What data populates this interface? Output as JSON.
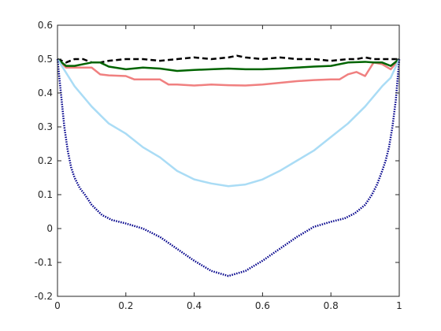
{
  "chart_data": {
    "type": "line",
    "title": "",
    "xlabel": "",
    "ylabel": "",
    "xlim": [
      0,
      1
    ],
    "ylim": [
      -0.2,
      0.6
    ],
    "grid": false,
    "legend": "none",
    "x_ticks": [
      0,
      0.2,
      0.4,
      0.6,
      0.8,
      1
    ],
    "x_tick_labels": [
      "0",
      "0.2",
      "0.4",
      "0.6",
      "0.8",
      "1"
    ],
    "y_ticks": [
      -0.2,
      -0.1,
      0,
      0.1,
      0.2,
      0.3,
      0.4,
      0.5,
      0.6
    ],
    "y_tick_labels": [
      "-0.2",
      "-0.1",
      "0",
      "0.1",
      "0.2",
      "0.3",
      "0.4",
      "0.5",
      "0.6"
    ],
    "series": [
      {
        "color": "#000000",
        "style": "dashed",
        "width": 2.5,
        "x": [
          0,
          0.025,
          0.05,
          0.075,
          0.1,
          0.125,
          0.15,
          0.2,
          0.25,
          0.3,
          0.35,
          0.4,
          0.45,
          0.5,
          0.525,
          0.55,
          0.6,
          0.65,
          0.7,
          0.75,
          0.8,
          0.85,
          0.875,
          0.9,
          0.925,
          0.95,
          0.975,
          1
        ],
        "y": [
          0.5,
          0.49,
          0.5,
          0.5,
          0.49,
          0.49,
          0.495,
          0.5,
          0.5,
          0.495,
          0.5,
          0.505,
          0.5,
          0.505,
          0.51,
          0.505,
          0.5,
          0.505,
          0.5,
          0.5,
          0.495,
          0.5,
          0.5,
          0.505,
          0.5,
          0.5,
          0.5,
          0.5
        ]
      },
      {
        "color": "#f08080",
        "style": "solid",
        "width": 2.5,
        "x": [
          0,
          0.025,
          0.05,
          0.075,
          0.1,
          0.125,
          0.15,
          0.2,
          0.225,
          0.25,
          0.3,
          0.325,
          0.35,
          0.4,
          0.45,
          0.5,
          0.55,
          0.6,
          0.65,
          0.7,
          0.75,
          0.8,
          0.825,
          0.85,
          0.875,
          0.9,
          0.925,
          0.95,
          0.975,
          1
        ],
        "y": [
          0.5,
          0.475,
          0.475,
          0.475,
          0.475,
          0.455,
          0.452,
          0.45,
          0.44,
          0.44,
          0.44,
          0.425,
          0.425,
          0.422,
          0.425,
          0.423,
          0.422,
          0.425,
          0.43,
          0.435,
          0.438,
          0.44,
          0.44,
          0.455,
          0.462,
          0.45,
          0.49,
          0.485,
          0.47,
          0.5
        ]
      },
      {
        "color": "#006400",
        "style": "solid",
        "width": 2.5,
        "x": [
          0,
          0.025,
          0.05,
          0.075,
          0.1,
          0.125,
          0.15,
          0.2,
          0.25,
          0.3,
          0.35,
          0.4,
          0.45,
          0.5,
          0.55,
          0.6,
          0.65,
          0.7,
          0.75,
          0.8,
          0.85,
          0.9,
          0.925,
          0.95,
          0.975,
          1
        ],
        "y": [
          0.5,
          0.48,
          0.48,
          0.485,
          0.49,
          0.49,
          0.478,
          0.47,
          0.475,
          0.472,
          0.465,
          0.468,
          0.47,
          0.472,
          0.47,
          0.47,
          0.472,
          0.475,
          0.478,
          0.48,
          0.49,
          0.492,
          0.49,
          0.49,
          0.48,
          0.5
        ]
      },
      {
        "color": "#aadcf5",
        "style": "solid",
        "width": 2.5,
        "x": [
          0,
          0.025,
          0.05,
          0.075,
          0.1,
          0.15,
          0.2,
          0.25,
          0.3,
          0.35,
          0.4,
          0.45,
          0.5,
          0.55,
          0.6,
          0.65,
          0.7,
          0.75,
          0.8,
          0.85,
          0.9,
          0.925,
          0.95,
          0.975,
          1
        ],
        "y": [
          0.5,
          0.46,
          0.42,
          0.39,
          0.36,
          0.31,
          0.28,
          0.24,
          0.21,
          0.17,
          0.145,
          0.133,
          0.125,
          0.13,
          0.145,
          0.17,
          0.2,
          0.23,
          0.27,
          0.31,
          0.36,
          0.39,
          0.42,
          0.445,
          0.5
        ]
      },
      {
        "color": "#00008b",
        "style": "dotted",
        "width": 2.5,
        "x": [
          0,
          0.01,
          0.02,
          0.03,
          0.04,
          0.05,
          0.065,
          0.08,
          0.1,
          0.13,
          0.16,
          0.2,
          0.25,
          0.3,
          0.35,
          0.4,
          0.45,
          0.5,
          0.55,
          0.6,
          0.65,
          0.7,
          0.75,
          0.8,
          0.84,
          0.87,
          0.9,
          0.92,
          0.935,
          0.95,
          0.96,
          0.97,
          0.98,
          0.99,
          1
        ],
        "y": [
          0.5,
          0.4,
          0.3,
          0.23,
          0.18,
          0.15,
          0.12,
          0.1,
          0.07,
          0.04,
          0.025,
          0.015,
          0.0,
          -0.025,
          -0.06,
          -0.095,
          -0.125,
          -0.14,
          -0.125,
          -0.095,
          -0.06,
          -0.025,
          0.005,
          0.02,
          0.03,
          0.045,
          0.07,
          0.1,
          0.13,
          0.17,
          0.2,
          0.24,
          0.3,
          0.38,
          0.5
        ]
      }
    ]
  }
}
